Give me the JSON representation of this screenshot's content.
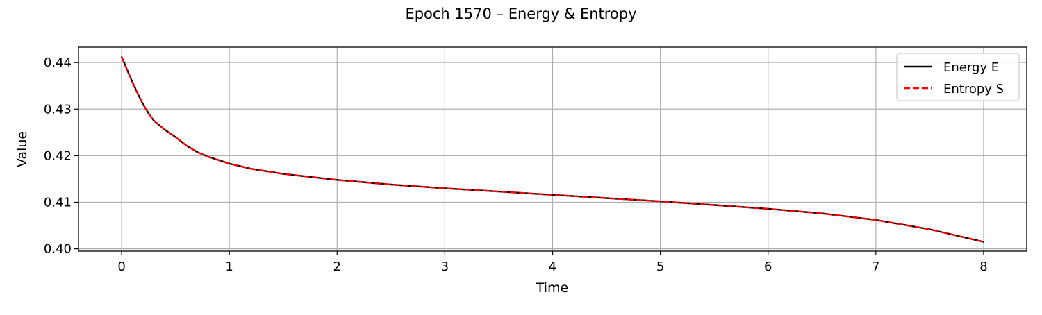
{
  "chart_data": {
    "type": "line",
    "title": "Epoch 1570 – Energy & Entropy",
    "xlabel": "Time",
    "ylabel": "Value",
    "xlim": [
      -0.4,
      8.4
    ],
    "ylim": [
      0.3995,
      0.4433
    ],
    "xticks": [
      0,
      1,
      2,
      3,
      4,
      5,
      6,
      7,
      8
    ],
    "xtick_labels": [
      "0",
      "1",
      "2",
      "3",
      "4",
      "5",
      "6",
      "7",
      "8"
    ],
    "yticks": [
      0.4,
      0.41,
      0.42,
      0.43,
      0.44
    ],
    "ytick_labels": [
      "0.40",
      "0.41",
      "0.42",
      "0.43",
      "0.44"
    ],
    "grid": true,
    "legend_position": "top-right",
    "series": [
      {
        "name": "Energy E",
        "color": "#000000",
        "style": "solid",
        "x": [
          0,
          0.05,
          0.1,
          0.15,
          0.2,
          0.25,
          0.3,
          0.4,
          0.5,
          0.6,
          0.7,
          0.8,
          1.0,
          1.2,
          1.5,
          2.0,
          2.5,
          3.0,
          3.5,
          4.0,
          4.5,
          5.0,
          5.5,
          6.0,
          6.5,
          7.0,
          7.5,
          8.0
        ],
        "y": [
          0.4413,
          0.4385,
          0.4358,
          0.4333,
          0.431,
          0.4291,
          0.4275,
          0.4256,
          0.424,
          0.4222,
          0.4208,
          0.4198,
          0.4183,
          0.4172,
          0.4161,
          0.4148,
          0.4138,
          0.413,
          0.4123,
          0.4116,
          0.4109,
          0.4102,
          0.4094,
          0.4086,
          0.4076,
          0.4062,
          0.4042,
          0.4015
        ]
      },
      {
        "name": "Entropy S",
        "color": "#ff0000",
        "style": "dashed",
        "x": [
          0,
          0.05,
          0.1,
          0.15,
          0.2,
          0.25,
          0.3,
          0.4,
          0.5,
          0.6,
          0.7,
          0.8,
          1.0,
          1.2,
          1.5,
          2.0,
          2.5,
          3.0,
          3.5,
          4.0,
          4.5,
          5.0,
          5.5,
          6.0,
          6.5,
          7.0,
          7.5,
          8.0
        ],
        "y": [
          0.4413,
          0.4385,
          0.4358,
          0.4333,
          0.431,
          0.4291,
          0.4275,
          0.4256,
          0.424,
          0.4222,
          0.4208,
          0.4198,
          0.4183,
          0.4172,
          0.4161,
          0.4148,
          0.4138,
          0.413,
          0.4123,
          0.4116,
          0.4109,
          0.4102,
          0.4094,
          0.4086,
          0.4076,
          0.4062,
          0.4042,
          0.4015
        ]
      }
    ]
  }
}
